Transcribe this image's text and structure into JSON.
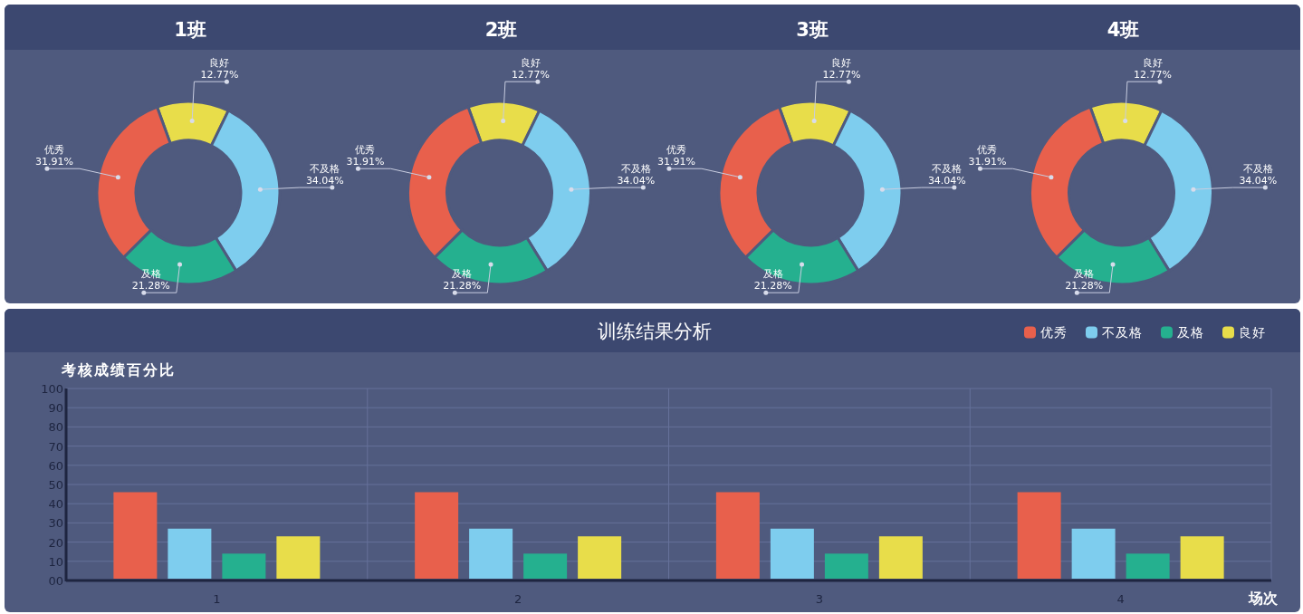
{
  "chart_data": [
    {
      "type": "donut",
      "title": "1班",
      "categories": [
        "良好",
        "不及格",
        "及格",
        "优秀"
      ],
      "values": [
        12.77,
        34.04,
        21.28,
        31.91
      ],
      "value_labels": [
        "12.77%",
        "34.04%",
        "21.28%",
        "31.91%"
      ],
      "colors": [
        "#e8dd4a",
        "#7ecdee",
        "#25b08f",
        "#e8604c"
      ]
    },
    {
      "type": "donut",
      "title": "2班",
      "categories": [
        "良好",
        "不及格",
        "及格",
        "优秀"
      ],
      "values": [
        12.77,
        34.04,
        21.28,
        31.91
      ],
      "value_labels": [
        "12.77%",
        "34.04%",
        "21.28%",
        "31.91%"
      ],
      "colors": [
        "#e8dd4a",
        "#7ecdee",
        "#25b08f",
        "#e8604c"
      ]
    },
    {
      "type": "donut",
      "title": "3班",
      "categories": [
        "良好",
        "不及格",
        "及格",
        "优秀"
      ],
      "values": [
        12.77,
        34.04,
        21.28,
        31.91
      ],
      "value_labels": [
        "12.77%",
        "34.04%",
        "21.28%",
        "31.91%"
      ],
      "colors": [
        "#e8dd4a",
        "#7ecdee",
        "#25b08f",
        "#e8604c"
      ]
    },
    {
      "type": "donut",
      "title": "4班",
      "categories": [
        "良好",
        "不及格",
        "及格",
        "优秀"
      ],
      "values": [
        12.77,
        34.04,
        21.28,
        31.91
      ],
      "value_labels": [
        "12.77%",
        "34.04%",
        "21.28%",
        "31.91%"
      ],
      "colors": [
        "#e8dd4a",
        "#7ecdee",
        "#25b08f",
        "#e8604c"
      ]
    },
    {
      "type": "bar",
      "title": "训练结果分析",
      "ylabel": "考核成绩百分比",
      "xlabel": "场次",
      "categories": [
        "1",
        "2",
        "3",
        "4"
      ],
      "series": [
        {
          "name": "优秀",
          "color": "#e8604c",
          "values": [
            46,
            46,
            46,
            46
          ]
        },
        {
          "name": "不及格",
          "color": "#7ecdee",
          "values": [
            27,
            27,
            27,
            27
          ]
        },
        {
          "name": "及格",
          "color": "#25b08f",
          "values": [
            14,
            14,
            14,
            14
          ]
        },
        {
          "name": "良好",
          "color": "#e8dd4a",
          "values": [
            23,
            23,
            23,
            23
          ]
        }
      ],
      "ylim": [
        0,
        100
      ],
      "yticks": [
        {
          "value": 0,
          "label": "00"
        },
        10,
        20,
        30,
        40,
        50,
        60,
        70,
        80,
        90,
        100
      ],
      "grid": true,
      "legend": "top right"
    }
  ]
}
